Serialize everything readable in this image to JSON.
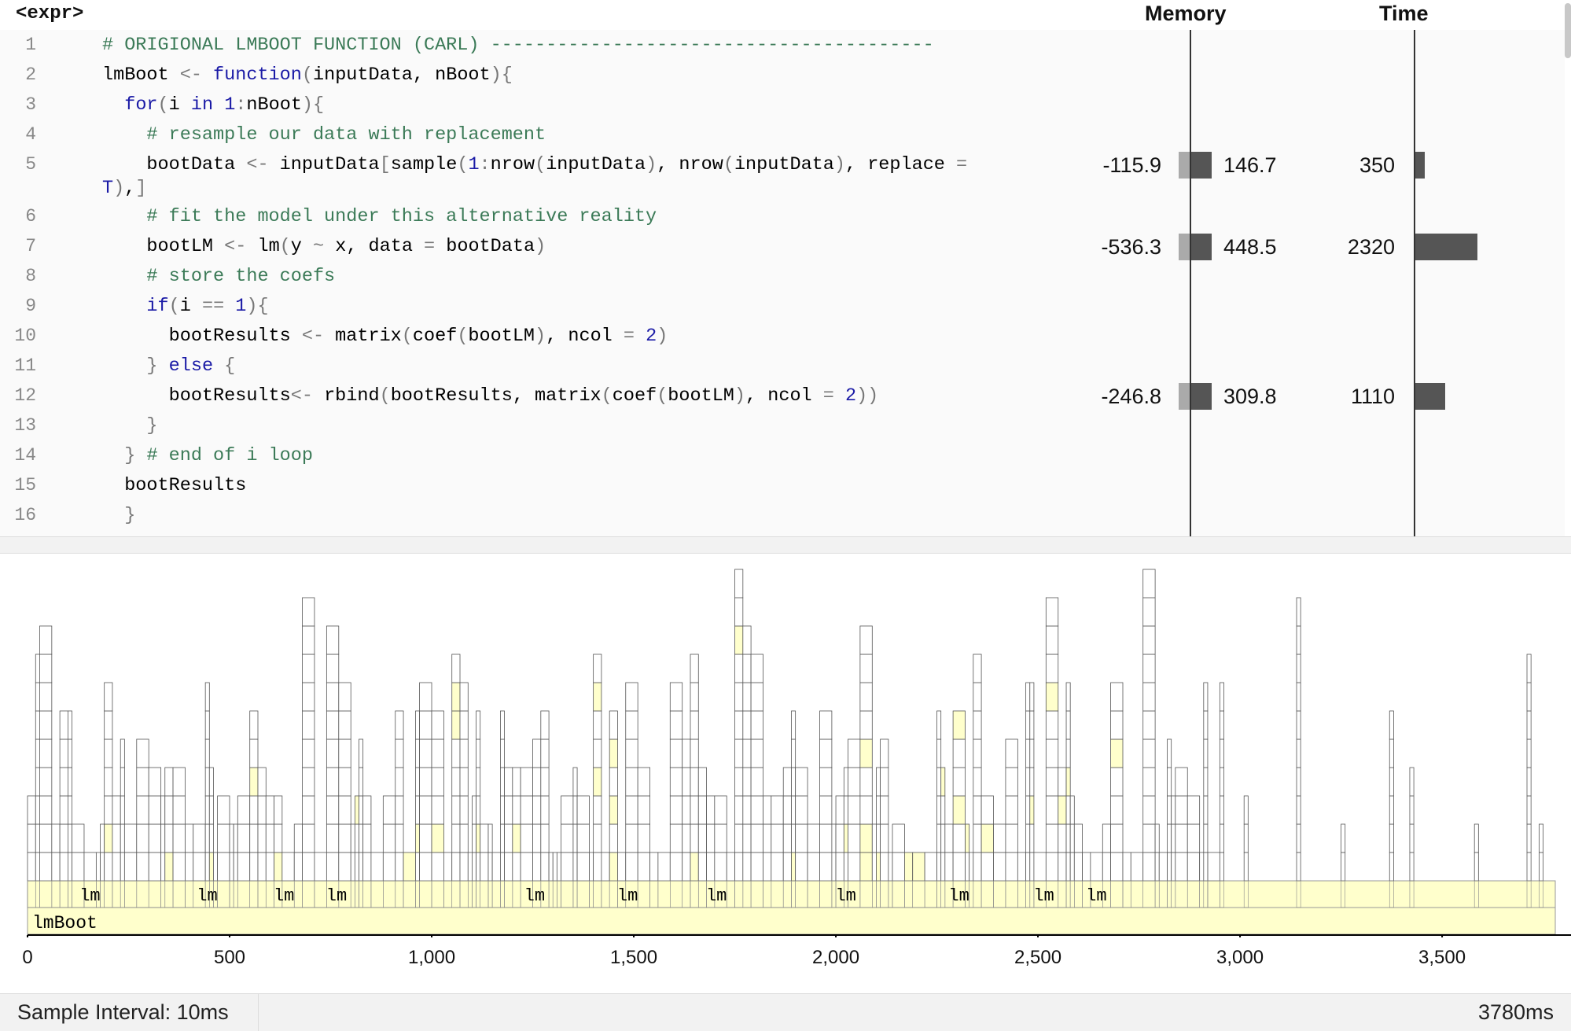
{
  "header": {
    "expr_label": "<expr>",
    "memory_label": "Memory",
    "time_label": "Time"
  },
  "code_lines": [
    {
      "n": "1",
      "tokens": [
        [
          "c",
          "# ORIGIONAL LMBOOT FUNCTION (CARL) ----------------------------------------"
        ]
      ]
    },
    {
      "n": "2",
      "tokens": [
        [
          "p",
          "lmBoot "
        ],
        [
          "o",
          "<-"
        ],
        [
          "p",
          " "
        ],
        [
          "k",
          "function"
        ],
        [
          "o",
          "("
        ],
        [
          "p",
          "inputData, nBoot"
        ],
        [
          "o",
          "){"
        ]
      ]
    },
    {
      "n": "3",
      "tokens": [
        [
          "p",
          "  "
        ],
        [
          "k",
          "for"
        ],
        [
          "o",
          "("
        ],
        [
          "p",
          "i "
        ],
        [
          "k",
          "in"
        ],
        [
          "p",
          " "
        ],
        [
          "n",
          "1"
        ],
        [
          "o",
          ":"
        ],
        [
          "p",
          "nBoot"
        ],
        [
          "o",
          "){"
        ]
      ]
    },
    {
      "n": "4",
      "tokens": [
        [
          "p",
          "    "
        ],
        [
          "c",
          "# resample our data with replacement"
        ]
      ]
    },
    {
      "n": "5",
      "tokens": [
        [
          "p",
          "    bootData "
        ],
        [
          "o",
          "<-"
        ],
        [
          "p",
          " inputData"
        ],
        [
          "o",
          "["
        ],
        [
          "p",
          "sample"
        ],
        [
          "o",
          "("
        ],
        [
          "n",
          "1"
        ],
        [
          "o",
          ":"
        ],
        [
          "p",
          "nrow"
        ],
        [
          "o",
          "("
        ],
        [
          "p",
          "inputData"
        ],
        [
          "o",
          ")"
        ],
        [
          "p",
          ", nrow"
        ],
        [
          "o",
          "("
        ],
        [
          "p",
          "inputData"
        ],
        [
          "o",
          ")"
        ],
        [
          "p",
          ", replace "
        ],
        [
          "o",
          "="
        ]
      ],
      "cont": [
        [
          "n",
          "T"
        ],
        [
          "o",
          ")"
        ],
        [
          "p",
          ","
        ],
        [
          "o",
          "]"
        ]
      ]
    },
    {
      "n": "6",
      "tokens": [
        [
          "p",
          "    "
        ],
        [
          "c",
          "# fit the model under this alternative reality"
        ]
      ]
    },
    {
      "n": "7",
      "tokens": [
        [
          "p",
          "    bootLM "
        ],
        [
          "o",
          "<-"
        ],
        [
          "p",
          " lm"
        ],
        [
          "o",
          "("
        ],
        [
          "p",
          "y "
        ],
        [
          "o",
          "~"
        ],
        [
          "p",
          " x, data "
        ],
        [
          "o",
          "="
        ],
        [
          "p",
          " bootData"
        ],
        [
          "o",
          ")"
        ]
      ]
    },
    {
      "n": "8",
      "tokens": [
        [
          "p",
          "    "
        ],
        [
          "c",
          "# store the coefs"
        ]
      ]
    },
    {
      "n": "9",
      "tokens": [
        [
          "p",
          "    "
        ],
        [
          "k",
          "if"
        ],
        [
          "o",
          "("
        ],
        [
          "p",
          "i "
        ],
        [
          "o",
          "=="
        ],
        [
          "p",
          " "
        ],
        [
          "n",
          "1"
        ],
        [
          "o",
          "){"
        ]
      ]
    },
    {
      "n": "10",
      "tokens": [
        [
          "p",
          "      bootResults "
        ],
        [
          "o",
          "<-"
        ],
        [
          "p",
          " matrix"
        ],
        [
          "o",
          "("
        ],
        [
          "p",
          "coef"
        ],
        [
          "o",
          "("
        ],
        [
          "p",
          "bootLM"
        ],
        [
          "o",
          ")"
        ],
        [
          "p",
          ", ncol "
        ],
        [
          "o",
          "="
        ],
        [
          "p",
          " "
        ],
        [
          "n",
          "2"
        ],
        [
          "o",
          ")"
        ]
      ]
    },
    {
      "n": "11",
      "tokens": [
        [
          "p",
          "    "
        ],
        [
          "o",
          "}"
        ],
        [
          "p",
          " "
        ],
        [
          "k",
          "else"
        ],
        [
          "p",
          " "
        ],
        [
          "o",
          "{"
        ]
      ]
    },
    {
      "n": "12",
      "tokens": [
        [
          "p",
          "      bootResults"
        ],
        [
          "o",
          "<-"
        ],
        [
          "p",
          " rbind"
        ],
        [
          "o",
          "("
        ],
        [
          "p",
          "bootResults, matrix"
        ],
        [
          "o",
          "("
        ],
        [
          "p",
          "coef"
        ],
        [
          "o",
          "("
        ],
        [
          "p",
          "bootLM"
        ],
        [
          "o",
          ")"
        ],
        [
          "p",
          ", ncol "
        ],
        [
          "o",
          "="
        ],
        [
          "p",
          " "
        ],
        [
          "n",
          "2"
        ],
        [
          "o",
          "))"
        ]
      ]
    },
    {
      "n": "13",
      "tokens": [
        [
          "p",
          "    "
        ],
        [
          "o",
          "}"
        ]
      ]
    },
    {
      "n": "14",
      "tokens": [
        [
          "p",
          "  "
        ],
        [
          "o",
          "}"
        ],
        [
          "p",
          " "
        ],
        [
          "c",
          "# end of i loop"
        ]
      ]
    },
    {
      "n": "15",
      "tokens": [
        [
          "p",
          "  bootResults"
        ]
      ]
    },
    {
      "n": "16",
      "tokens": [
        [
          "p",
          "  "
        ],
        [
          "o",
          "}"
        ]
      ]
    }
  ],
  "profile_rows": [
    {
      "line": "5",
      "mem_neg": "-115.9",
      "mem_pos": "146.7",
      "time": "350",
      "mem_neg_val": 115.9,
      "mem_pos_val": 146.7,
      "time_val": 350
    },
    {
      "line": "7",
      "mem_neg": "-536.3",
      "mem_pos": "448.5",
      "time": "2320",
      "mem_neg_val": 536.3,
      "mem_pos_val": 448.5,
      "time_val": 2320
    },
    {
      "line": "12",
      "mem_neg": "-246.8",
      "mem_pos": "309.8",
      "time": "1110",
      "mem_neg_val": 246.8,
      "mem_pos_val": 309.8,
      "time_val": 1110
    }
  ],
  "flame": {
    "root_label": "lmBoot",
    "lm_label": "lm",
    "lm_positions_ms": [
      160,
      450,
      640,
      770,
      1260,
      1490,
      1710,
      2030,
      2310,
      2520,
      2650
    ],
    "xlim": [
      0,
      3780
    ],
    "ticks": [
      "0",
      "500",
      "1,000",
      "1,500",
      "2,000",
      "2,500",
      "3,000",
      "3,500"
    ],
    "tick_values": [
      0,
      500,
      1000,
      1500,
      2000,
      2500,
      3000,
      3500
    ],
    "highlight_color": "#ffffcc"
  },
  "status": {
    "interval": "Sample Interval: 10ms",
    "total": "3780ms"
  }
}
